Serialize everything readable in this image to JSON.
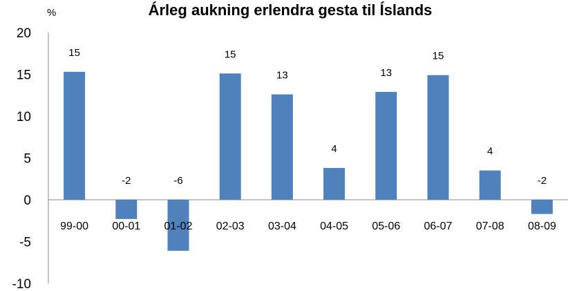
{
  "chart_data": {
    "type": "bar",
    "title": "Árleg aukning erlendra gesta til Íslands",
    "unit_label": "%",
    "xlabel": "",
    "ylabel": "",
    "ylim": [
      -10,
      20
    ],
    "yticks": [
      -10,
      -5,
      0,
      5,
      10,
      15,
      20
    ],
    "grid": false,
    "legend": "none",
    "bar_color": "#4F81BD",
    "categories": [
      "99-00",
      "00-01",
      "01-02",
      "02-03",
      "03-04",
      "04-05",
      "05-06",
      "06-07",
      "07-08",
      "08-09"
    ],
    "values": [
      15.3,
      -2.3,
      -6.1,
      15.1,
      12.6,
      3.8,
      12.9,
      14.9,
      3.5,
      -1.7
    ],
    "data_labels": [
      "15",
      "-2",
      "-6",
      "15",
      "13",
      "4",
      "13",
      "15",
      "4",
      "-2"
    ]
  }
}
